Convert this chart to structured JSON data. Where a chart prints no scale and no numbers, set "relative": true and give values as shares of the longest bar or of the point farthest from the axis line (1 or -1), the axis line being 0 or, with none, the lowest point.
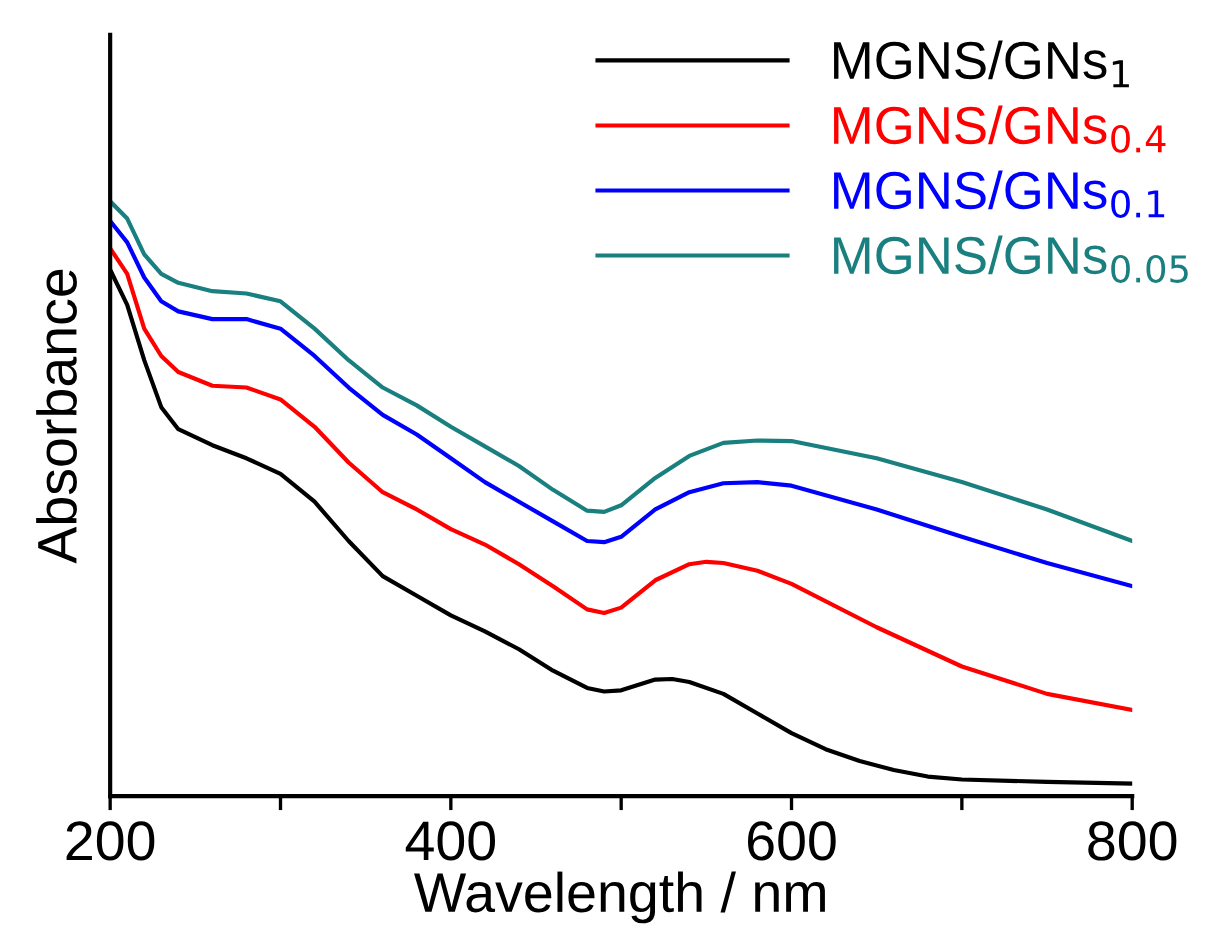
{
  "chart_data": {
    "type": "line",
    "relative": true,
    "xlabel": "Wavelength / nm",
    "ylabel": "Absorbance",
    "xlim": [
      200,
      800
    ],
    "xticks": [
      200,
      {
        "value": 300,
        "label": null
      },
      400,
      {
        "value": 500,
        "label": null
      },
      600,
      {
        "value": 700,
        "label": null
      },
      800
    ],
    "grid": false,
    "legend": "top right",
    "line_style": "solid",
    "series": [
      {
        "name": "MGNS/GNs$_{1}$",
        "color": "#000000",
        "x": [
          200,
          210,
          220,
          230,
          240,
          260,
          280,
          300,
          320,
          340,
          360,
          380,
          400,
          420,
          440,
          460,
          480,
          490,
          500,
          520,
          530,
          540,
          560,
          580,
          600,
          620,
          640,
          660,
          680,
          700,
          750,
          800
        ],
        "values": [
          0.885,
          0.826,
          0.733,
          0.654,
          0.617,
          0.59,
          0.568,
          0.542,
          0.495,
          0.429,
          0.37,
          0.337,
          0.304,
          0.277,
          0.247,
          0.211,
          0.182,
          0.176,
          0.178,
          0.196,
          0.197,
          0.192,
          0.172,
          0.139,
          0.106,
          0.079,
          0.059,
          0.044,
          0.033,
          0.028,
          0.024,
          0.021
        ]
      },
      {
        "name": "MGNS/GNs$_{0.4}$",
        "color": "#ff0000",
        "x": [
          200,
          210,
          220,
          230,
          240,
          260,
          280,
          300,
          320,
          340,
          360,
          380,
          400,
          420,
          440,
          460,
          480,
          490,
          500,
          520,
          540,
          550,
          560,
          580,
          600,
          650,
          700,
          750,
          800
        ],
        "values": [
          0.921,
          0.878,
          0.786,
          0.74,
          0.713,
          0.69,
          0.687,
          0.667,
          0.621,
          0.561,
          0.511,
          0.482,
          0.449,
          0.423,
          0.39,
          0.353,
          0.314,
          0.308,
          0.317,
          0.363,
          0.39,
          0.394,
          0.392,
          0.379,
          0.357,
          0.284,
          0.218,
          0.172,
          0.145
        ]
      },
      {
        "name": "MGNS/GNs$_{0.1}$",
        "color": "#0000ff",
        "x": [
          200,
          210,
          220,
          230,
          240,
          260,
          280,
          300,
          320,
          340,
          360,
          380,
          400,
          420,
          440,
          460,
          480,
          490,
          500,
          520,
          540,
          560,
          580,
          600,
          650,
          700,
          750,
          800
        ],
        "values": [
          0.967,
          0.931,
          0.872,
          0.832,
          0.815,
          0.802,
          0.802,
          0.786,
          0.74,
          0.687,
          0.641,
          0.608,
          0.568,
          0.528,
          0.495,
          0.462,
          0.429,
          0.427,
          0.436,
          0.482,
          0.511,
          0.526,
          0.528,
          0.522,
          0.482,
          0.436,
          0.392,
          0.353
        ]
      },
      {
        "name": "MGNS/GNs$_{0.05}$",
        "color": "#1a7f7f",
        "x": [
          200,
          210,
          220,
          230,
          240,
          260,
          280,
          300,
          320,
          340,
          360,
          380,
          400,
          420,
          440,
          460,
          480,
          490,
          500,
          520,
          540,
          560,
          580,
          600,
          650,
          700,
          750,
          800
        ],
        "values": [
          1.0,
          0.971,
          0.911,
          0.878,
          0.863,
          0.849,
          0.845,
          0.832,
          0.786,
          0.733,
          0.687,
          0.657,
          0.621,
          0.588,
          0.555,
          0.515,
          0.48,
          0.478,
          0.489,
          0.535,
          0.572,
          0.594,
          0.598,
          0.597,
          0.568,
          0.528,
          0.482,
          0.429
        ]
      }
    ]
  }
}
